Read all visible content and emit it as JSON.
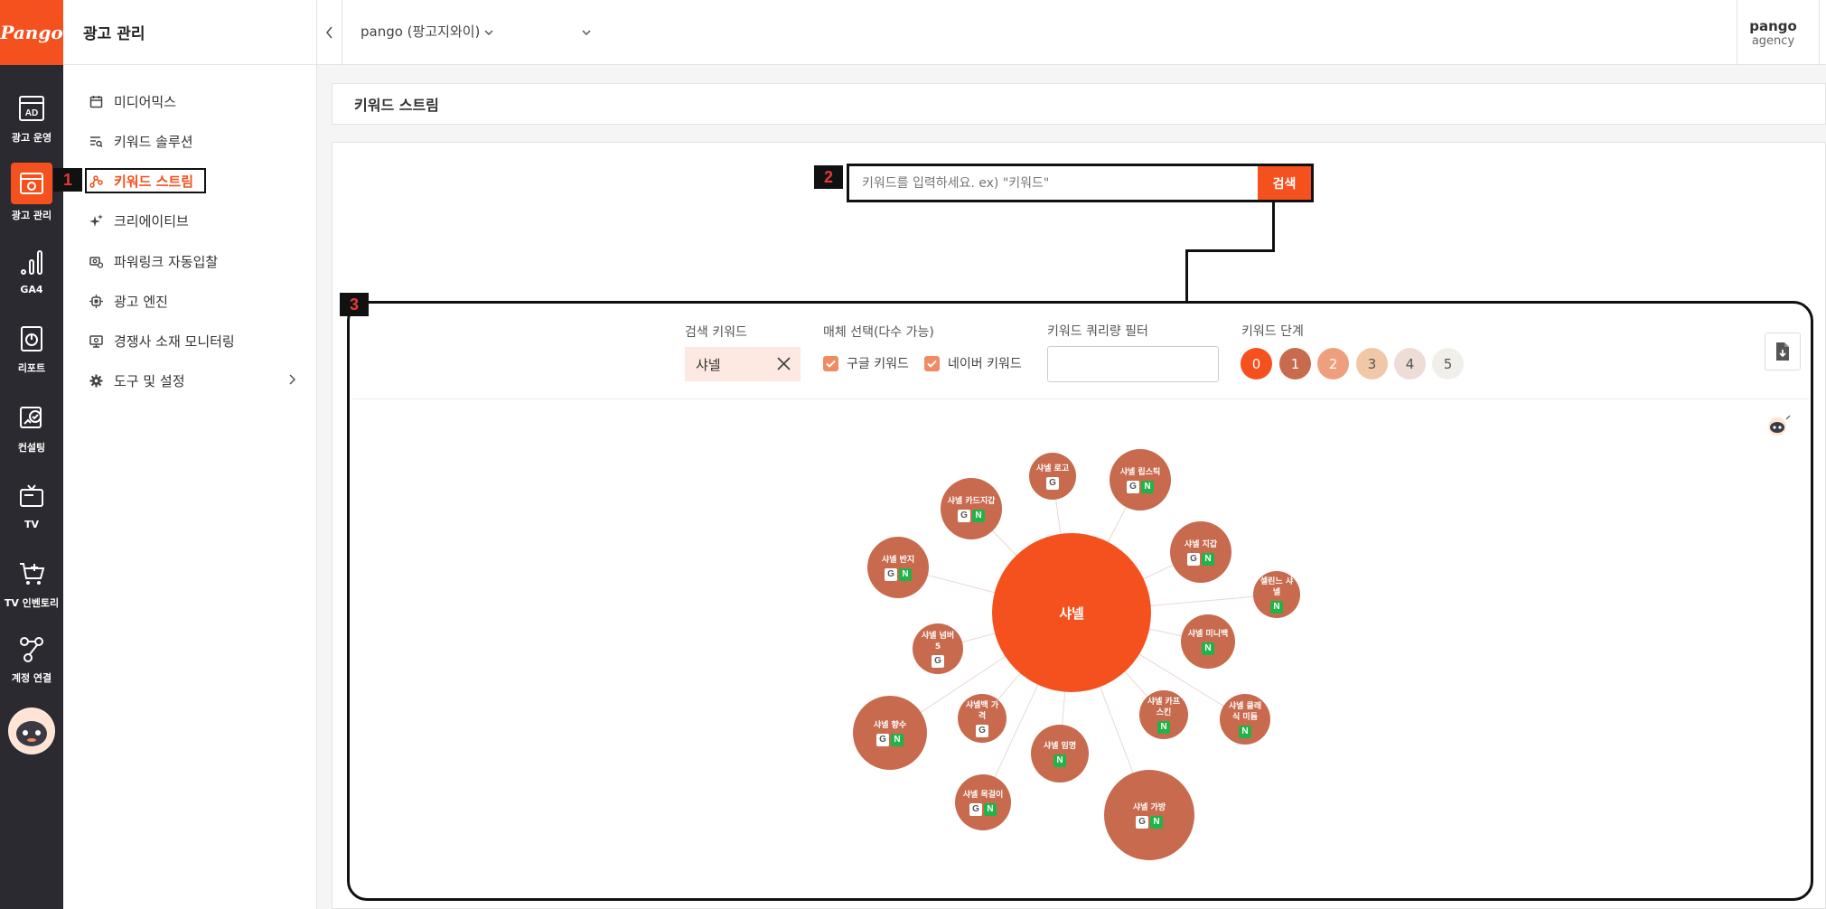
{
  "brand": {
    "logo_text": "Pango",
    "accent": "#f4511e",
    "node_color": "#c86a4e"
  },
  "rail": {
    "items": [
      {
        "label": "광고 운영",
        "icon": "ad-icon"
      },
      {
        "label": "광고 관리",
        "icon": "ad-manage-icon",
        "active": true
      },
      {
        "label": "GA4",
        "icon": "bar-chart-icon"
      },
      {
        "label": "리포트",
        "icon": "report-icon"
      },
      {
        "label": "컨설팅",
        "icon": "consulting-icon"
      },
      {
        "label": "TV",
        "icon": "tv-icon"
      },
      {
        "label": "TV 인벤토리",
        "icon": "cart-icon"
      },
      {
        "label": "계정 연결",
        "icon": "share-icon"
      }
    ]
  },
  "subnav": {
    "title": "광고 관리",
    "items": [
      {
        "label": "미디어믹스",
        "icon": "calendar-icon"
      },
      {
        "label": "키워드 솔루션",
        "icon": "list-search-icon"
      },
      {
        "label": "키워드 스트림",
        "icon": "stream-icon",
        "active": true
      },
      {
        "label": "크리에이티브",
        "icon": "sparkle-icon"
      },
      {
        "label": "파워링크 자동입찰",
        "icon": "auto-bid-icon"
      },
      {
        "label": "광고 엔진",
        "icon": "chip-icon"
      },
      {
        "label": "경쟁사 소재 모니터링",
        "icon": "monitor-icon"
      },
      {
        "label": "도구 및 설정",
        "icon": "gear-icon"
      }
    ]
  },
  "topbar": {
    "account": "pango (팡고지와이)",
    "agency_name": "pango",
    "agency_sub": "agency"
  },
  "page": {
    "title": "키워드 스트림"
  },
  "search": {
    "placeholder": "키워드를 입력하세요. ex) \"키워드\"",
    "button": "검색"
  },
  "annotations": {
    "b1": "1",
    "b2": "2",
    "b3": "3"
  },
  "filters": {
    "search_keyword_label": "검색 키워드",
    "search_keyword_value": "샤넬",
    "media_label": "매체 선택(다수 가능)",
    "media_options": [
      {
        "label": "구글 키워드",
        "checked": true
      },
      {
        "label": "네이버 키워드",
        "checked": true
      }
    ],
    "query_filter_label": "키워드 쿼리량 필터",
    "stage_label": "키워드 단계",
    "stages": [
      "0",
      "1",
      "2",
      "3",
      "4",
      "5"
    ]
  },
  "graph": {
    "center": "샤넬",
    "nodes": [
      {
        "label": "샤넬 로고",
        "g": true,
        "n": false
      },
      {
        "label": "샤넬 립스틱",
        "g": true,
        "n": true
      },
      {
        "label": "샤넬 카드지갑",
        "g": true,
        "n": true
      },
      {
        "label": "샤넬 지갑",
        "g": true,
        "n": true
      },
      {
        "label": "샤넬 반지",
        "g": true,
        "n": true
      },
      {
        "label": "셀린느 샤넬",
        "g": false,
        "n": true
      },
      {
        "label": "샤넬 미니백",
        "g": false,
        "n": true
      },
      {
        "label": "샤넬 넘버 5",
        "g": true,
        "n": false
      },
      {
        "label": "샤넬백 가격",
        "g": true,
        "n": false
      },
      {
        "label": "샤넬 카프 스킨",
        "g": false,
        "n": true
      },
      {
        "label": "샤넬 클래식 미듐",
        "g": false,
        "n": true
      },
      {
        "label": "샤넬 향수",
        "g": true,
        "n": true
      },
      {
        "label": "샤넬 임명",
        "g": false,
        "n": true
      },
      {
        "label": "샤넬 목걸이",
        "g": true,
        "n": true
      },
      {
        "label": "샤넬 가방",
        "g": true,
        "n": true
      }
    ]
  }
}
